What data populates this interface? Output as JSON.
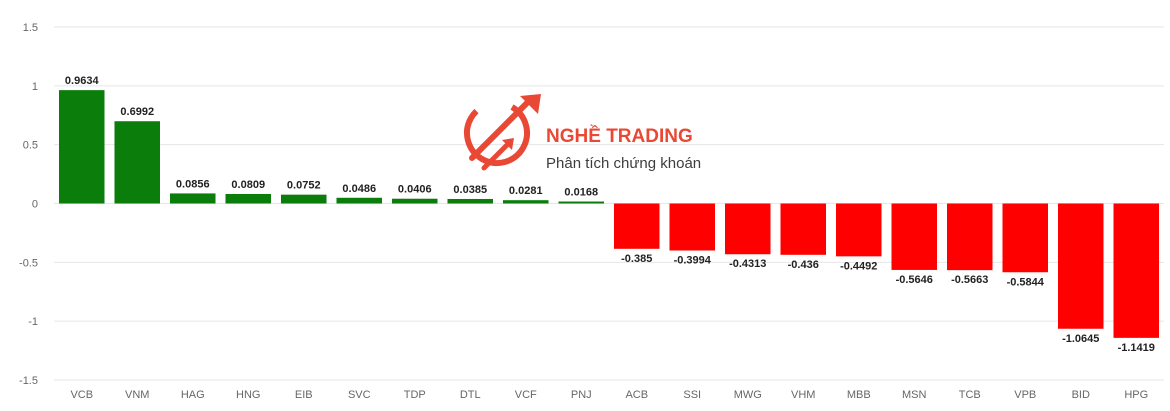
{
  "chart_data": {
    "type": "bar",
    "categories": [
      "VCB",
      "VNM",
      "HAG",
      "HNG",
      "EIB",
      "SVC",
      "TDP",
      "DTL",
      "VCF",
      "PNJ",
      "ACB",
      "SSI",
      "MWG",
      "VHM",
      "MBB",
      "MSN",
      "TCB",
      "VPB",
      "BID",
      "HPG"
    ],
    "values": [
      0.9634,
      0.6992,
      0.0856,
      0.0809,
      0.0752,
      0.0486,
      0.0406,
      0.0385,
      0.0281,
      0.0168,
      -0.385,
      -0.3994,
      -0.4313,
      -0.436,
      -0.4492,
      -0.5646,
      -0.5663,
      -0.5844,
      -1.0645,
      -1.1419
    ],
    "value_labels": [
      "0.9634",
      "0.6992",
      "0.0856",
      "0.0809",
      "0.0752",
      "0.0486",
      "0.0406",
      "0.0385",
      "0.0281",
      "0.0168",
      "-0.385",
      "-0.3994",
      "-0.4313",
      "-0.436",
      "-0.4492",
      "-0.5646",
      "-0.5663",
      "-0.5844",
      "-1.0645",
      "-1.1419"
    ],
    "yticks": [
      "1.5",
      "1",
      "0.5",
      "0",
      "-0.5",
      "-1",
      "-1.5"
    ],
    "ylim": [
      -1.5,
      1.5
    ],
    "grid": true,
    "legend": "none",
    "colors": {
      "positive": "#0b7d0b",
      "negative": "#ff0000"
    }
  },
  "watermark": {
    "title_part1": "NGHỀ ",
    "title_part2": "TRADING",
    "subtitle": "Phân tích chứng khoán",
    "colors": {
      "brand": "#e8402a",
      "dark": "#222222"
    },
    "icon": "trading-logo-icon"
  }
}
